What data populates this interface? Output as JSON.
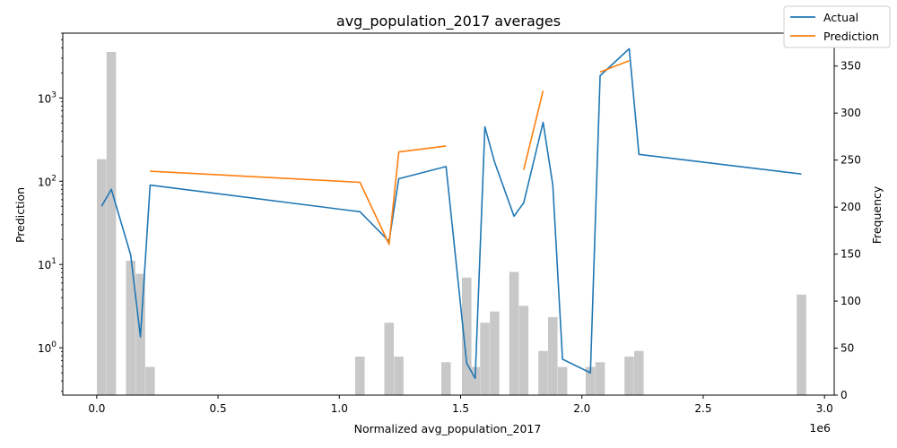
{
  "chart_data": {
    "type": "line",
    "title": "avg_population_2017 averages",
    "xlabel": "Normalized avg_population_2017",
    "ylabel": "Prediction",
    "y2label": "Frequency",
    "x_offset_label": "1e6",
    "xlim": [
      -140000,
      3040000
    ],
    "ylim": [
      0.27,
      6000
    ],
    "yscale": "log",
    "y2lim": [
      0,
      385
    ],
    "x_ticks": [
      0,
      500000,
      1000000,
      1500000,
      2000000,
      2500000,
      3000000
    ],
    "x_tick_labels": [
      "0.0",
      "0.5",
      "1.0",
      "1.5",
      "2.0",
      "2.5",
      "3.0"
    ],
    "y_ticks": [
      1,
      10,
      100,
      1000
    ],
    "y_tick_labels": [
      "10^0",
      "10^1",
      "10^2",
      "10^3"
    ],
    "y2_ticks": [
      0,
      50,
      100,
      150,
      200,
      250,
      300,
      350
    ],
    "y2_tick_labels": [
      "0",
      "50",
      "100",
      "150",
      "200",
      "250",
      "300",
      "350"
    ],
    "legend_position": "top-right",
    "legend": [
      "Actual",
      "Prediction"
    ],
    "colors": {
      "actual": "#1f77b4",
      "prediction": "#ff7f0e",
      "bars": "#c8c8c8"
    },
    "series": [
      {
        "name": "Actual",
        "points": [
          [
            20000,
            50
          ],
          [
            60000,
            80
          ],
          [
            140000,
            13
          ],
          [
            180000,
            1.35
          ],
          [
            220000,
            90
          ],
          [
            1085000,
            43
          ],
          [
            1205000,
            19
          ],
          [
            1245000,
            107
          ],
          [
            1440000,
            150
          ],
          [
            1525000,
            0.65
          ],
          [
            1560000,
            0.43
          ],
          [
            1600000,
            450
          ],
          [
            1640000,
            170
          ],
          [
            1720000,
            38
          ],
          [
            1760000,
            55
          ],
          [
            1840000,
            510
          ],
          [
            1880000,
            90
          ],
          [
            1920000,
            0.73
          ],
          [
            2035000,
            0.5
          ],
          [
            2075000,
            1850
          ],
          [
            2195000,
            3900
          ],
          [
            2235000,
            210
          ],
          [
            2905000,
            122
          ]
        ]
      },
      {
        "name": "Prediction",
        "segments": [
          [
            [
              220000,
              132
            ],
            [
              1085000,
              97
            ],
            [
              1205000,
              17.5
            ],
            [
              1245000,
              225
            ],
            [
              1440000,
              265
            ]
          ],
          [
            [
              1760000,
              137
            ],
            [
              1840000,
              1220
            ]
          ],
          [
            [
              2075000,
              2050
            ],
            [
              2195000,
              2800
            ]
          ]
        ]
      }
    ],
    "histogram": {
      "bin_width": 39000,
      "bins": [
        [
          20000,
          251
        ],
        [
          60000,
          365
        ],
        [
          140000,
          143
        ],
        [
          180000,
          129
        ],
        [
          220000,
          30
        ],
        [
          1085000,
          41
        ],
        [
          1205000,
          77
        ],
        [
          1245000,
          41
        ],
        [
          1440000,
          35
        ],
        [
          1525000,
          125
        ],
        [
          1560000,
          30
        ],
        [
          1600000,
          77
        ],
        [
          1640000,
          89
        ],
        [
          1720000,
          131
        ],
        [
          1760000,
          95
        ],
        [
          1840000,
          47
        ],
        [
          1880000,
          83
        ],
        [
          1920000,
          30
        ],
        [
          2035000,
          30
        ],
        [
          2075000,
          35
        ],
        [
          2195000,
          41
        ],
        [
          2235000,
          47
        ],
        [
          2905000,
          107
        ]
      ]
    }
  }
}
